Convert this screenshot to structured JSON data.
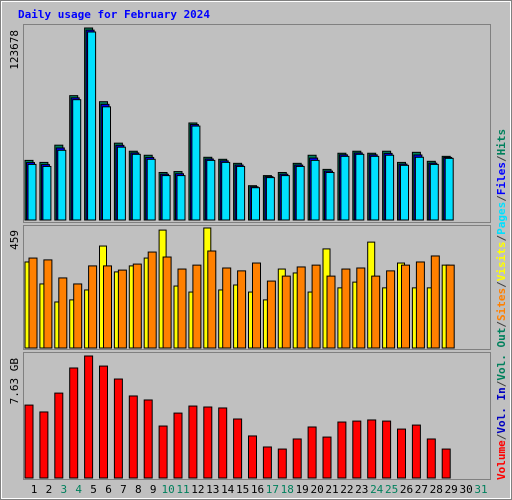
{
  "chart_data": [
    {
      "type": "bar",
      "title": "Daily usage for February 2024",
      "ylim": [
        0,
        123678
      ],
      "yticks": [
        123678
      ],
      "series": [
        {
          "name": "Hits",
          "color": "#00805c",
          "values": [
            38400,
            37100,
            48200,
            80100,
            123678,
            76200,
            49500,
            44300,
            41700,
            30600,
            31200,
            62500,
            40400,
            39100,
            36500,
            22100,
            28600,
            30600,
            36500,
            41700,
            32600,
            43000,
            44300,
            43000,
            44300,
            37100,
            43600,
            37800,
            41000,
            null,
            null
          ]
        },
        {
          "name": "Files",
          "color": "#0000ff",
          "values": [
            37000,
            35700,
            46400,
            78700,
            122300,
            74500,
            48100,
            43200,
            40300,
            29500,
            29800,
            61500,
            39300,
            38100,
            35400,
            21400,
            27900,
            29500,
            35400,
            39900,
            31500,
            42000,
            43200,
            42000,
            42900,
            36000,
            41900,
            36600,
            40300,
            null,
            null
          ]
        },
        {
          "name": "Pages",
          "color": "#00e0ff",
          "values": [
            35800,
            34500,
            44900,
            77500,
            121100,
            72900,
            46900,
            42300,
            39100,
            28600,
            28600,
            60500,
            38400,
            37100,
            34500,
            20800,
            27300,
            28600,
            34500,
            38400,
            30600,
            41000,
            42300,
            41000,
            41700,
            35200,
            40400,
            35800,
            39700,
            null,
            null
          ]
        }
      ]
    },
    {
      "type": "bar",
      "ylim": [
        0,
        459
      ],
      "yticks": [
        459
      ],
      "series": [
        {
          "name": "Visits",
          "color": "#ffff00",
          "values": [
            329,
            245,
            176,
            184,
            222,
            390,
            291,
            314,
            344,
            451,
            237,
            214,
            459,
            222,
            241,
            214,
            184,
            302,
            287,
            214,
            379,
            230,
            252,
            405,
            230,
            325,
            230,
            230,
            317,
            null,
            null
          ]
        },
        {
          "name": "Sites",
          "color": "#ff8000",
          "values": [
            344,
            337,
            268,
            245,
            314,
            314,
            298,
            321,
            367,
            348,
            302,
            317,
            371,
            306,
            295,
            325,
            256,
            275,
            310,
            317,
            275,
            302,
            306,
            275,
            295,
            317,
            329,
            352,
            317,
            null,
            null
          ]
        }
      ]
    },
    {
      "type": "bar",
      "ylim": [
        0,
        7.63
      ],
      "yticks": [
        {
          "value": 7.63,
          "label": "7.63 GB"
        }
      ],
      "categories": [
        "1",
        "2",
        "3",
        "4",
        "5",
        "6",
        "7",
        "8",
        "9",
        "10",
        "11",
        "12",
        "13",
        "14",
        "15",
        "16",
        "17",
        "18",
        "19",
        "20",
        "21",
        "22",
        "23",
        "24",
        "25",
        "26",
        "27",
        "28",
        "29",
        "30",
        "31"
      ],
      "weekend_indices": [
        2,
        3,
        9,
        10,
        16,
        17,
        23,
        24,
        30
      ],
      "weekend_color": "#00805c",
      "series": [
        {
          "name": "Volume",
          "color": "#ff0000",
          "values": [
            4.56,
            4.13,
            5.31,
            6.88,
            7.63,
            7.0,
            6.19,
            5.13,
            4.88,
            3.25,
            4.06,
            4.5,
            4.44,
            4.38,
            3.69,
            2.63,
            1.94,
            1.81,
            2.44,
            3.19,
            2.56,
            3.5,
            3.56,
            3.63,
            3.56,
            3.06,
            3.31,
            2.44,
            1.81,
            null,
            null
          ]
        },
        {
          "name": "Vol. In",
          "color": "#0000c0",
          "values": [
            null,
            null,
            null,
            null,
            null,
            null,
            null,
            null,
            null,
            null,
            null,
            null,
            null,
            null,
            null,
            null,
            null,
            null,
            null,
            null,
            null,
            null,
            null,
            null,
            null,
            null,
            null,
            null,
            null,
            null,
            null
          ]
        },
        {
          "name": "Vol. Out",
          "color": "#00805c",
          "values": [
            null,
            null,
            null,
            null,
            null,
            null,
            null,
            null,
            null,
            null,
            null,
            null,
            null,
            null,
            null,
            null,
            null,
            null,
            null,
            null,
            null,
            null,
            null,
            null,
            null,
            null,
            null,
            null,
            null,
            null,
            null
          ]
        }
      ]
    }
  ],
  "legend_separator": "/"
}
